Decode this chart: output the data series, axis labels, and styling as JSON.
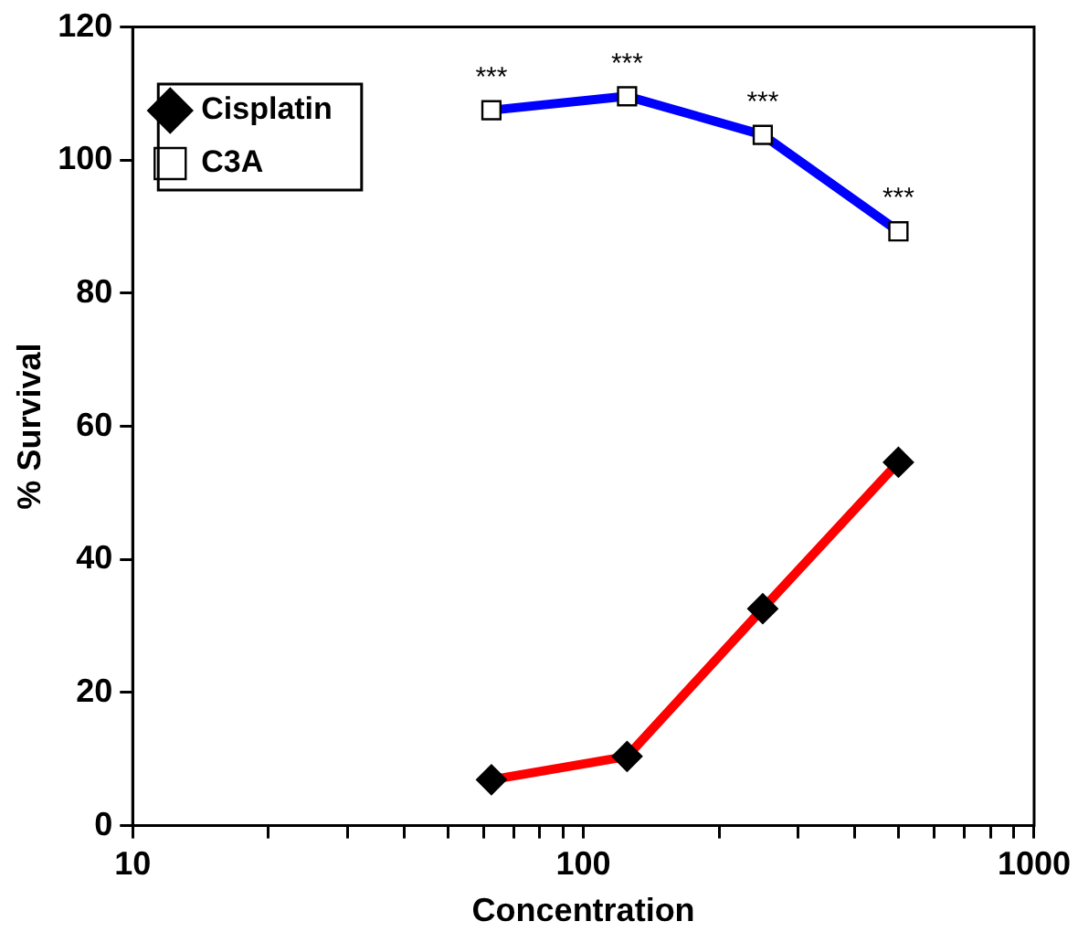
{
  "chart_data": {
    "type": "line",
    "xlabel": "Concentration",
    "ylabel": "% Survival",
    "log": "x",
    "xlim": [
      10,
      1000
    ],
    "xticks": [
      10,
      {
        "value": 20,
        "label": null
      },
      {
        "value": 30,
        "label": null
      },
      {
        "value": 40,
        "label": null
      },
      {
        "value": 50,
        "label": null
      },
      {
        "value": 60,
        "label": null
      },
      {
        "value": 70,
        "label": null
      },
      {
        "value": 80,
        "label": null
      },
      {
        "value": 90,
        "label": null
      },
      100,
      {
        "value": 200,
        "label": null
      },
      {
        "value": 300,
        "label": null
      },
      {
        "value": 400,
        "label": null
      },
      {
        "value": 500,
        "label": null
      },
      {
        "value": 600,
        "label": null
      },
      {
        "value": 700,
        "label": null
      },
      {
        "value": 800,
        "label": null
      },
      {
        "value": 900,
        "label": null
      },
      1000
    ],
    "ylim": [
      0,
      120
    ],
    "yticks": [
      0,
      20,
      40,
      60,
      80,
      100,
      120
    ],
    "grid": false,
    "legend": "top left",
    "line_style": "solid",
    "x": [
      62.5,
      125,
      250,
      500
    ],
    "series": [
      {
        "name": "Cisplatin",
        "color": "#ff0000",
        "marker": "diamond",
        "values": [
          6.9,
          10.4,
          32.6,
          54.6
        ]
      },
      {
        "name": "C3A",
        "color": "#0000ff",
        "marker": "square",
        "values": [
          107.5,
          109.6,
          103.8,
          89.3
        ]
      }
    ],
    "annotations": [
      {
        "text": "***",
        "x": 62.5,
        "y": 107.5
      },
      {
        "text": "***",
        "x": 125,
        "y": 109.6
      },
      {
        "text": "***",
        "x": 250,
        "y": 103.8
      },
      {
        "text": "***",
        "x": 500,
        "y": 89.3
      }
    ]
  }
}
